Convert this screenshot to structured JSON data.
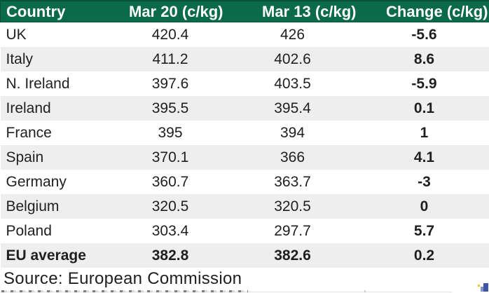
{
  "colors": {
    "header_bg": "#0b6a49",
    "header_border": "#05513a",
    "header_text": "#ffffff",
    "row_alt_bg": "#eeeeee",
    "row_bg": "#ffffff",
    "body_text": "#1f1f1f",
    "logo_blue_dark": "#3d55a5",
    "logo_blue_light": "#8290c8",
    "logo_yellow": "#e6c83c"
  },
  "table": {
    "headers": [
      "Country",
      "Mar 20 (c/kg)",
      "Mar 13 (c/kg)",
      "Change (c/kg)"
    ],
    "rows": [
      {
        "country": "UK",
        "mar20": "420.4",
        "mar13": "426",
        "change": "-5.6"
      },
      {
        "country": "Italy",
        "mar20": "411.2",
        "mar13": "402.6",
        "change": "8.6"
      },
      {
        "country": "N. Ireland",
        "mar20": "397.6",
        "mar13": "403.5",
        "change": "-5.9"
      },
      {
        "country": "Ireland",
        "mar20": "395.5",
        "mar13": "395.4",
        "change": "0.1"
      },
      {
        "country": "France",
        "mar20": "395",
        "mar13": "394",
        "change": "1"
      },
      {
        "country": "Spain",
        "mar20": "370.1",
        "mar13": "366",
        "change": "4.1"
      },
      {
        "country": "Germany",
        "mar20": "360.7",
        "mar13": "363.7",
        "change": "-3"
      },
      {
        "country": "Belgium",
        "mar20": "320.5",
        "mar13": "320.5",
        "change": "0"
      },
      {
        "country": "Poland",
        "mar20": "303.4",
        "mar13": "297.7",
        "change": "5.7"
      },
      {
        "country": "EU average",
        "mar20": "382.8",
        "mar13": "382.6",
        "change": "0.2"
      }
    ]
  },
  "source_note": "Source: European Commission",
  "chart_data": {
    "type": "table",
    "columns": [
      "Country",
      "Mar 20 (c/kg)",
      "Mar 13 (c/kg)",
      "Change (c/kg)"
    ],
    "categories": [
      "UK",
      "Italy",
      "N. Ireland",
      "Ireland",
      "France",
      "Spain",
      "Germany",
      "Belgium",
      "Poland",
      "EU average"
    ],
    "series": [
      {
        "name": "Mar 20 (c/kg)",
        "values": [
          420.4,
          411.2,
          397.6,
          395.5,
          395,
          370.1,
          360.7,
          320.5,
          303.4,
          382.8
        ]
      },
      {
        "name": "Mar 13 (c/kg)",
        "values": [
          426,
          402.6,
          403.5,
          395.4,
          394,
          366,
          363.7,
          320.5,
          297.7,
          382.6
        ]
      },
      {
        "name": "Change (c/kg)",
        "values": [
          -5.6,
          8.6,
          -5.9,
          0.1,
          1,
          4.1,
          -3,
          0,
          5.7,
          0.2
        ]
      }
    ],
    "layout_hints": {
      "header_style": "dark-green, white bold text",
      "striped_rows": true,
      "bold_columns": [
        "Change (c/kg)"
      ],
      "bold_rows": [
        "EU average"
      ]
    },
    "source": "Source: European Commission"
  }
}
